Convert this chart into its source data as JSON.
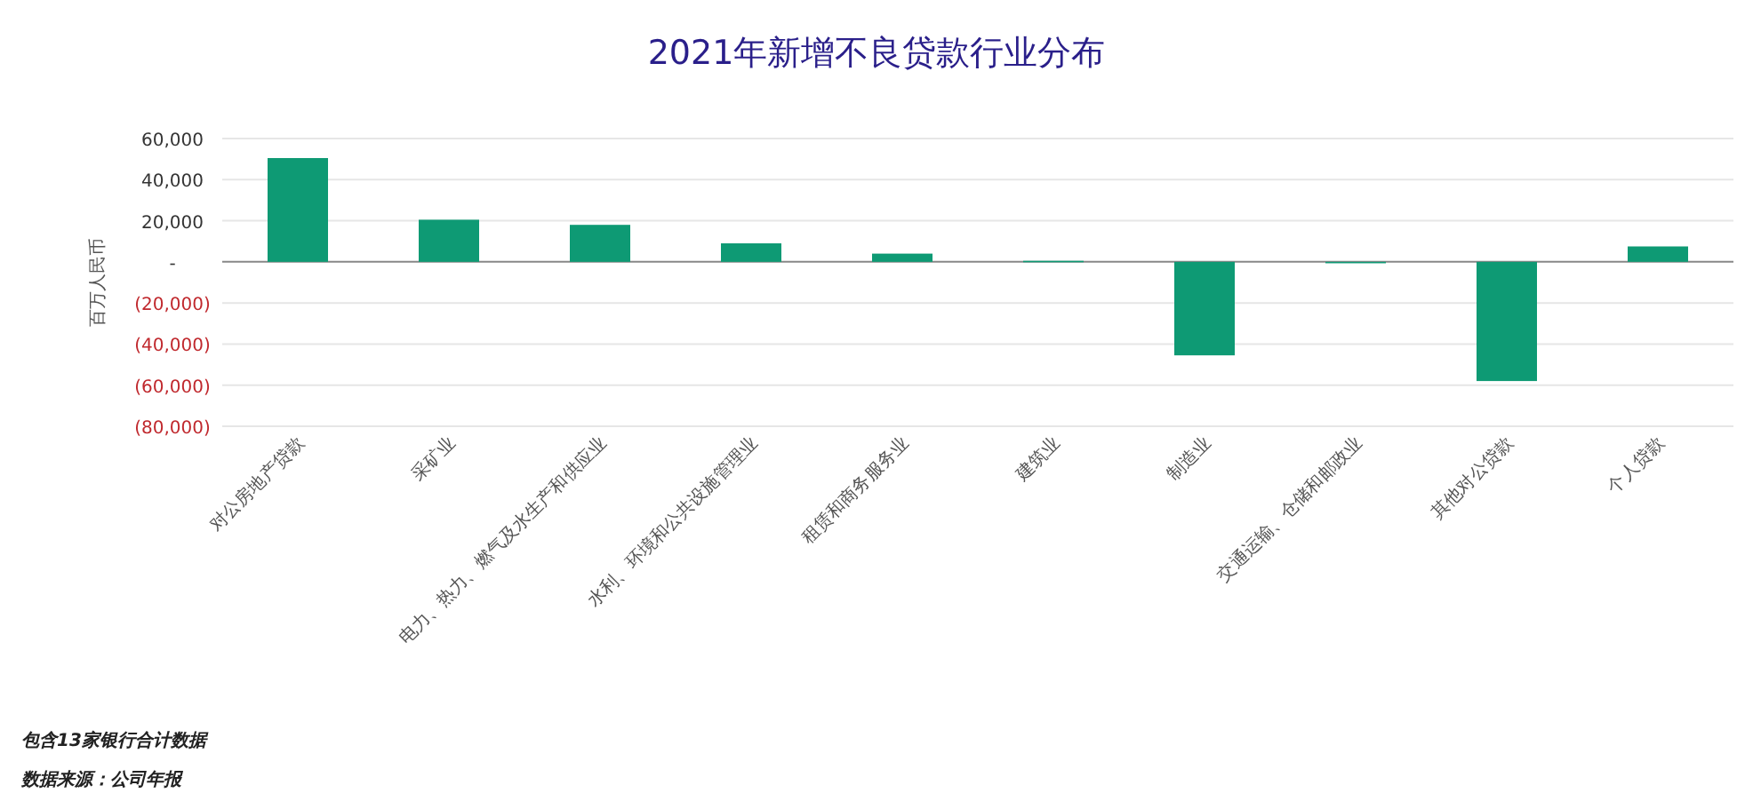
{
  "chart_data": {
    "type": "bar",
    "title": "2021年新增不良贷款行业分布",
    "ylabel": "百万人民币",
    "categories": [
      "对公房地产贷款",
      "采矿业",
      "电力、热力、燃气及水生产和供应业",
      "水利、环境和公共设施管理业",
      "租赁和商务服务业",
      "建筑业",
      "制造业",
      "交通运输、仓储和邮政业",
      "其他对公贷款",
      "个人贷款"
    ],
    "values": [
      50500,
      20500,
      18000,
      9000,
      4000,
      500,
      -45500,
      -500,
      -58000,
      7500
    ],
    "color": "#0e9a74",
    "ylim": [
      -80000,
      60000
    ],
    "yticks": [
      {
        "value": -80000,
        "label": "(80,000)"
      },
      {
        "value": -60000,
        "label": "(60,000)"
      },
      {
        "value": -40000,
        "label": "(40,000)"
      },
      {
        "value": -20000,
        "label": "(20,000)"
      },
      {
        "value": 0,
        "label": "-"
      },
      {
        "value": 20000,
        "label": "20,000"
      },
      {
        "value": 40000,
        "label": "40,000"
      },
      {
        "value": 60000,
        "label": "60,000"
      }
    ],
    "grid": "y",
    "annotations": [
      "包含13家银行合计数据",
      "数据来源：公司年报"
    ]
  }
}
